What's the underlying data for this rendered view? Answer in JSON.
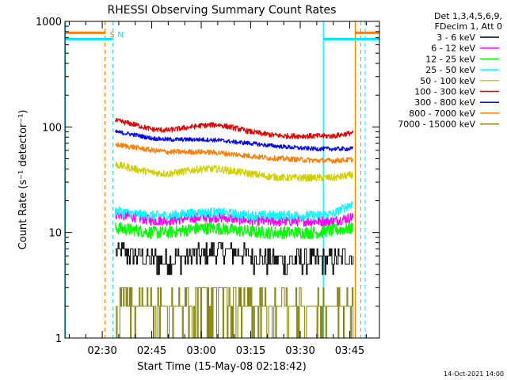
{
  "colors": {
    "background": "#ffffff",
    "axis": "#000000",
    "n_line": "#00e5ff",
    "s_line": "#ff7f00"
  },
  "chart_data": {
    "type": "line",
    "title": "RHESSI Observing Summary Count Rates",
    "xlabel": "Start Time (15-May-08 02:18:42)",
    "ylabel": "Count Rate (s⁻¹ detector⁻¹)",
    "y_scale": "log",
    "ylim": [
      1,
      1000
    ],
    "xlim": [
      "02:18:42",
      "03:54:00"
    ],
    "x_ticks": [
      "02:30",
      "02:45",
      "03:00",
      "03:15",
      "03:30",
      "03:45"
    ],
    "y_ticks": [
      "1",
      "10",
      "100",
      "1000"
    ],
    "legend_header": [
      "Det 1,3,4,5,6,9,",
      "FDecim 1, Att 0"
    ],
    "legend_position": "right",
    "timestamp": "14-Oct-2021 14:00",
    "annotations": [
      {
        "text": "S",
        "time": "02:30:50",
        "color": "#ff7f00"
      },
      {
        "text": "N",
        "time": "02:33:10",
        "color": "#00e5ff"
      }
    ],
    "series": [
      {
        "name": "3 - 6 keV",
        "color": "#000000",
        "x": [
          "02:34",
          "02:40",
          "02:45",
          "02:50",
          "02:55",
          "03:00",
          "03:05",
          "03:10",
          "03:15",
          "03:20",
          "03:25",
          "03:30",
          "03:35",
          "03:40",
          "03:46"
        ],
        "values": [
          7,
          6,
          5.5,
          5.5,
          6,
          6.2,
          6.8,
          6.5,
          6,
          5.5,
          5.5,
          5.5,
          5.5,
          5.5,
          6
        ]
      },
      {
        "name": "6 - 12 keV",
        "color": "#ff00ff",
        "x": [
          "02:34",
          "02:40",
          "02:45",
          "02:50",
          "02:55",
          "03:00",
          "03:05",
          "03:10",
          "03:15",
          "03:20",
          "03:25",
          "03:30",
          "03:35",
          "03:40",
          "03:46"
        ],
        "values": [
          15,
          14,
          13,
          13,
          13.5,
          14,
          14,
          13.5,
          13,
          12.8,
          12.8,
          12.8,
          12.8,
          12.8,
          14
        ]
      },
      {
        "name": "12 - 25 keV",
        "color": "#00ff00",
        "x": [
          "02:34",
          "02:40",
          "02:45",
          "02:50",
          "02:55",
          "03:00",
          "03:05",
          "03:10",
          "03:15",
          "03:20",
          "03:25",
          "03:30",
          "03:35",
          "03:40",
          "03:46"
        ],
        "values": [
          11,
          10.5,
          10,
          10,
          10.5,
          11,
          11,
          10.5,
          10.2,
          10,
          10,
          10,
          10,
          10.5,
          11
        ]
      },
      {
        "name": "25 - 50 keV",
        "color": "#00ffff",
        "x": [
          "02:34",
          "02:40",
          "02:45",
          "02:50",
          "02:55",
          "03:00",
          "03:05",
          "03:10",
          "03:15",
          "03:20",
          "03:25",
          "03:30",
          "03:35",
          "03:40",
          "03:46"
        ],
        "values": [
          16,
          15,
          14.5,
          14.5,
          15,
          15.5,
          15.5,
          15,
          14.5,
          14.5,
          14.5,
          14.5,
          14.5,
          15,
          19
        ]
      },
      {
        "name": "50 - 100 keV",
        "color": "#d0d000",
        "x": [
          "02:34",
          "02:40",
          "02:45",
          "02:50",
          "02:55",
          "03:00",
          "03:05",
          "03:10",
          "03:15",
          "03:20",
          "03:25",
          "03:30",
          "03:35",
          "03:40",
          "03:46"
        ],
        "values": [
          44,
          40,
          37,
          36,
          38,
          40,
          40,
          38,
          36,
          34,
          33,
          33,
          33,
          33,
          35
        ]
      },
      {
        "name": "100 - 300 keV",
        "color": "#e00000",
        "x": [
          "02:34",
          "02:40",
          "02:45",
          "02:50",
          "02:55",
          "03:00",
          "03:05",
          "03:10",
          "03:15",
          "03:20",
          "03:25",
          "03:30",
          "03:35",
          "03:40",
          "03:46"
        ],
        "values": [
          115,
          105,
          95,
          93,
          98,
          103,
          105,
          98,
          90,
          85,
          82,
          82,
          82,
          82,
          88
        ]
      },
      {
        "name": "300 - 800 keV",
        "color": "#0000ff",
        "x": [
          "02:34",
          "02:40",
          "02:45",
          "02:50",
          "02:55",
          "03:00",
          "03:05",
          "03:10",
          "03:15",
          "03:20",
          "03:25",
          "03:30",
          "03:35",
          "03:40",
          "03:46"
        ],
        "values": [
          90,
          84,
          78,
          76,
          76,
          76,
          75,
          72,
          70,
          67,
          65,
          63,
          62,
          62,
          62
        ]
      },
      {
        "name": "800 - 7000 keV",
        "color": "#ff7f00",
        "x": [
          "02:34",
          "02:40",
          "02:45",
          "02:50",
          "02:55",
          "03:00",
          "03:05",
          "03:10",
          "03:15",
          "03:20",
          "03:25",
          "03:30",
          "03:35",
          "03:40",
          "03:46"
        ],
        "values": [
          68,
          64,
          60,
          58,
          58,
          58,
          57,
          55,
          53,
          51,
          50,
          49,
          48,
          48,
          49
        ]
      },
      {
        "name": "7000 - 15000 keV",
        "color": "#808000",
        "x": [
          "02:34",
          "02:40",
          "02:45",
          "02:50",
          "02:55",
          "03:00",
          "03:05",
          "03:10",
          "03:15",
          "03:20",
          "03:25",
          "03:30",
          "03:35",
          "03:40",
          "03:46"
        ],
        "values": [
          2,
          2,
          2,
          2,
          2,
          2.5,
          2.5,
          2.5,
          2,
          2,
          2,
          2,
          2,
          2,
          2
        ]
      }
    ],
    "flag_lines": [
      {
        "name": "S",
        "color": "#ff7f00",
        "segments": [
          {
            "start": "02:18:42",
            "end": "02:31:00",
            "value": 780
          },
          {
            "start": "03:46:40",
            "end": "03:54:00",
            "value": 780
          }
        ],
        "dashed_marks": [
          "02:30:50",
          "03:48:20"
        ],
        "solid_marks": [
          "03:46:40"
        ]
      },
      {
        "name": "N",
        "color": "#00e5ff",
        "segments": [
          {
            "start": "02:18:42",
            "end": "02:33:10",
            "value": 680
          },
          {
            "start": "03:37:00",
            "end": "03:54:00",
            "value": 680
          }
        ],
        "dashed_marks": [
          "02:33:10",
          "03:49:40"
        ],
        "solid_marks": [
          "02:18:50",
          "03:37:00"
        ]
      }
    ]
  }
}
